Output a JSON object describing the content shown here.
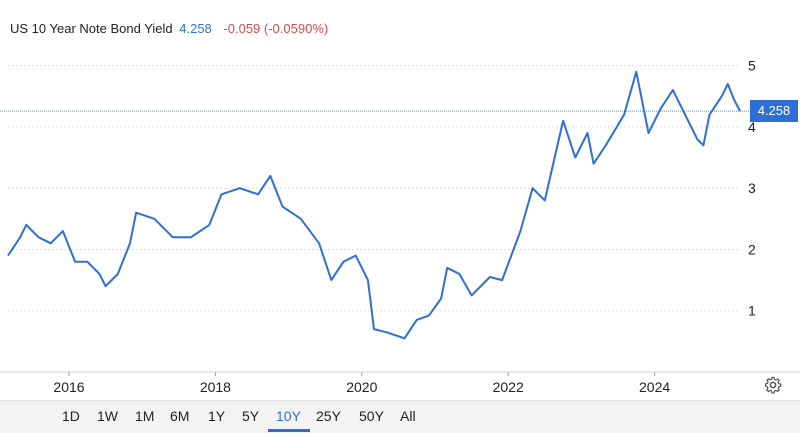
{
  "header": {
    "title": "US 10 Year Note Bond Yield",
    "last": "4.258",
    "change": "-0.059 (-0.0590%)"
  },
  "price_badge": "4.258",
  "range_buttons": [
    {
      "label": "1D"
    },
    {
      "label": "1W"
    },
    {
      "label": "1M"
    },
    {
      "label": "6M"
    },
    {
      "label": "1Y"
    },
    {
      "label": "5Y"
    },
    {
      "label": "10Y",
      "active": true
    },
    {
      "label": "25Y"
    },
    {
      "label": "50Y"
    },
    {
      "label": "All"
    }
  ],
  "icons": {
    "settings": "gear-icon"
  },
  "colors": {
    "line": "#2e6fd6",
    "negative": "#e0464a",
    "grid": "#dddddd"
  },
  "chart_data": {
    "type": "line",
    "title": "US 10 Year Note Bond Yield",
    "xlabel": "",
    "ylabel": "",
    "x_ticks": [
      "2016",
      "2018",
      "2020",
      "2022",
      "2024"
    ],
    "y_ticks": [
      1,
      2,
      3,
      4,
      5
    ],
    "ylim": [
      0,
      5.5
    ],
    "xlim": [
      "2015-03",
      "2025-03"
    ],
    "current_value": 4.258,
    "grid": true,
    "series": [
      {
        "x": [
          "2015-03",
          "2015-05",
          "2015-06",
          "2015-08",
          "2015-10",
          "2015-12",
          "2016-02",
          "2016-04",
          "2016-06",
          "2016-07",
          "2016-09",
          "2016-11",
          "2016-12",
          "2017-03",
          "2017-06",
          "2017-09",
          "2017-12",
          "2018-02",
          "2018-05",
          "2018-08",
          "2018-10",
          "2018-12",
          "2019-03",
          "2019-06",
          "2019-08",
          "2019-10",
          "2019-12",
          "2020-02",
          "2020-03",
          "2020-05",
          "2020-08",
          "2020-10",
          "2020-12",
          "2021-02",
          "2021-03",
          "2021-05",
          "2021-07",
          "2021-10",
          "2021-12",
          "2022-03",
          "2022-05",
          "2022-07",
          "2022-10",
          "2022-12",
          "2023-02",
          "2023-03",
          "2023-05",
          "2023-08",
          "2023-10",
          "2023-12",
          "2024-02",
          "2024-04",
          "2024-06",
          "2024-08",
          "2024-09",
          "2024-10",
          "2024-12",
          "2025-01",
          "2025-02",
          "2025-03"
        ],
        "values": [
          1.9,
          2.2,
          2.4,
          2.2,
          2.1,
          2.3,
          1.8,
          1.8,
          1.6,
          1.4,
          1.6,
          2.1,
          2.6,
          2.5,
          2.2,
          2.2,
          2.4,
          2.9,
          3.0,
          2.9,
          3.2,
          2.7,
          2.5,
          2.1,
          1.5,
          1.8,
          1.9,
          1.5,
          0.7,
          0.65,
          0.55,
          0.85,
          0.92,
          1.2,
          1.7,
          1.6,
          1.25,
          1.55,
          1.5,
          2.3,
          3.0,
          2.8,
          4.1,
          3.5,
          3.9,
          3.4,
          3.7,
          4.2,
          4.9,
          3.9,
          4.3,
          4.6,
          4.2,
          3.8,
          3.7,
          4.2,
          4.5,
          4.7,
          4.45,
          4.26
        ]
      }
    ]
  }
}
